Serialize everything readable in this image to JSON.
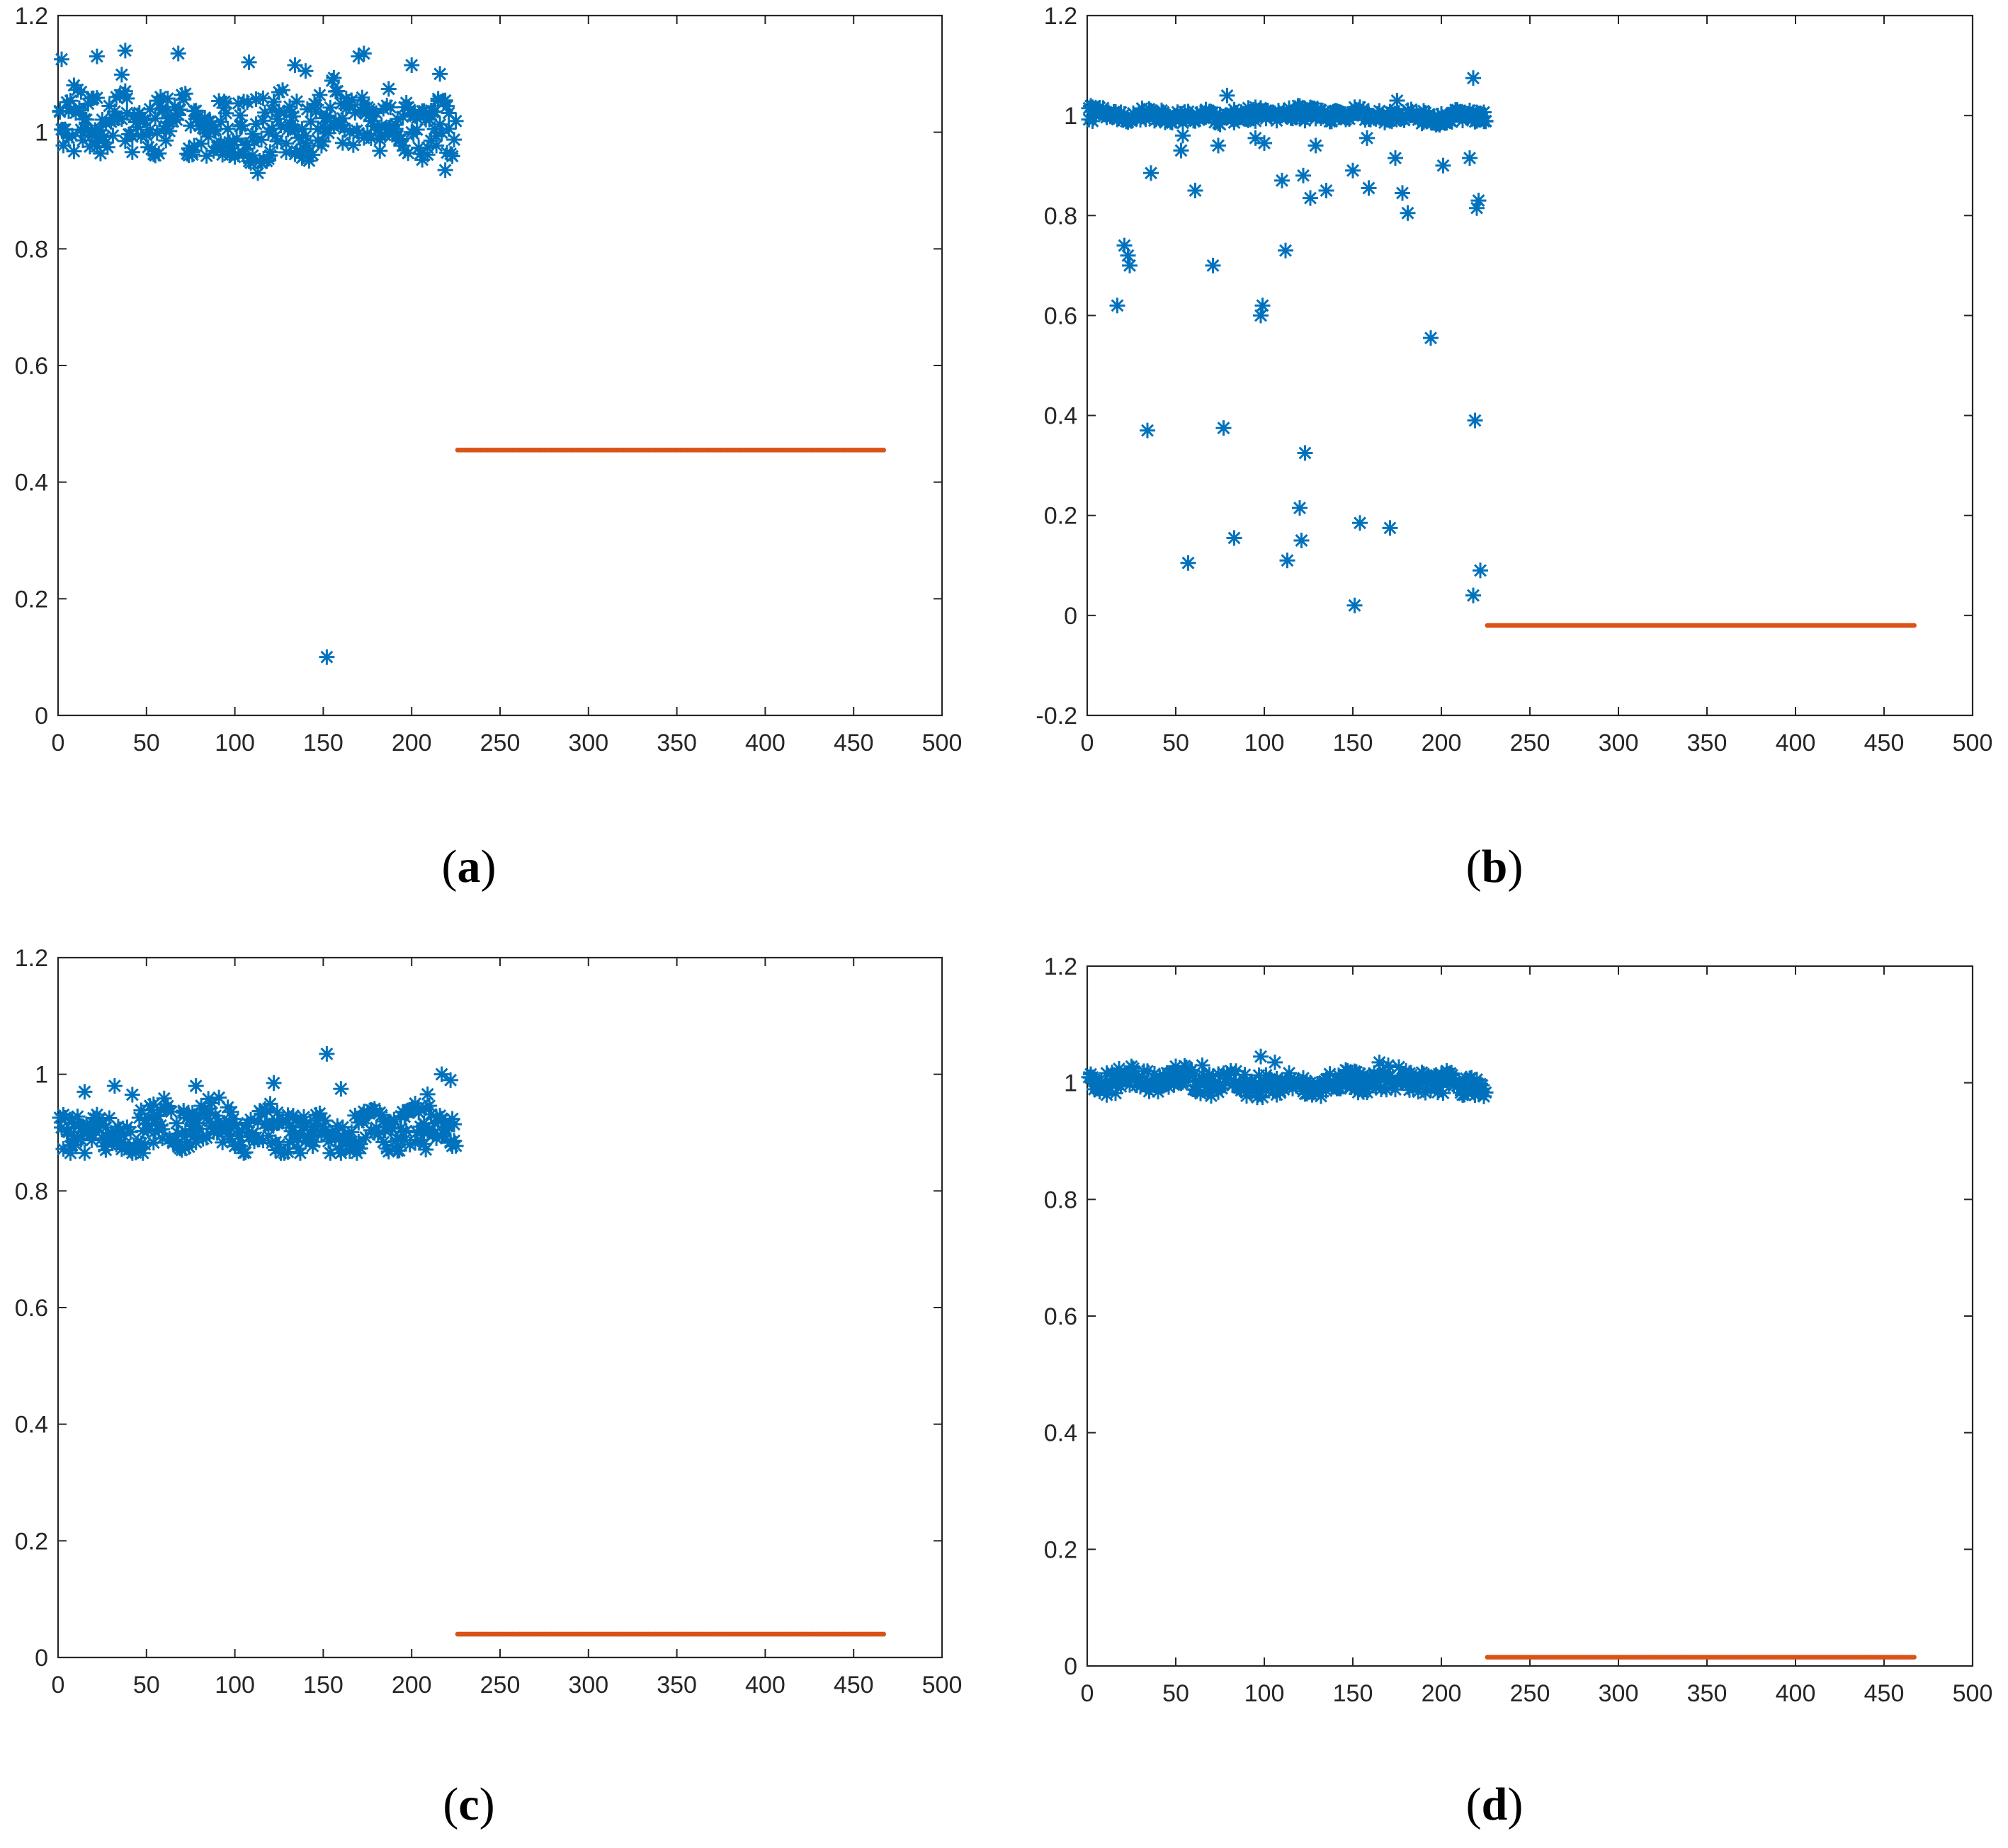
{
  "figure": {
    "panels": [
      {
        "id": "a",
        "caption": {
          "open": "(",
          "letter": "a",
          "close": ")"
        }
      },
      {
        "id": "b",
        "caption": {
          "open": "(",
          "letter": "b",
          "close": ")"
        }
      },
      {
        "id": "c",
        "caption": {
          "open": "(",
          "letter": "c",
          "close": ")"
        }
      },
      {
        "id": "d",
        "caption": {
          "open": "(",
          "letter": "d",
          "close": ")"
        }
      }
    ]
  },
  "chart_data": [
    {
      "panel": "a",
      "type": "scatter",
      "xlim": [
        0,
        500
      ],
      "ylim": [
        0,
        1.2
      ],
      "xticks": [
        "0",
        "50",
        "100",
        "150",
        "200",
        "250",
        "300",
        "350",
        "400",
        "450",
        "500"
      ],
      "yticks": [
        "0",
        "0.2",
        "0.4",
        "0.6",
        "0.8",
        "1",
        "1.2"
      ],
      "colors": {
        "series1": "#0072BD",
        "series2": "#D95319"
      },
      "series": [
        {
          "name": "series1",
          "marker": "asterisk",
          "x_range": [
            1,
            225
          ],
          "pattern": {
            "base": 1.01,
            "spread": 0.05,
            "min": 0.93,
            "max": 1.14
          },
          "notable_points": [
            {
              "x": 2,
              "y": 1.125
            },
            {
              "x": 22,
              "y": 1.13
            },
            {
              "x": 38,
              "y": 1.14
            },
            {
              "x": 68,
              "y": 1.135
            },
            {
              "x": 108,
              "y": 1.12
            },
            {
              "x": 134,
              "y": 1.115
            },
            {
              "x": 140,
              "y": 1.105
            },
            {
              "x": 152,
              "y": 0.1
            },
            {
              "x": 170,
              "y": 1.13
            },
            {
              "x": 173,
              "y": 1.135
            },
            {
              "x": 200,
              "y": 1.115
            },
            {
              "x": 216,
              "y": 1.1
            },
            {
              "x": 219,
              "y": 0.935
            }
          ]
        },
        {
          "name": "series2",
          "marker": "dot",
          "x_range": [
            226,
            467
          ],
          "value": 0.455
        }
      ]
    },
    {
      "panel": "b",
      "type": "scatter",
      "xlim": [
        0,
        500
      ],
      "ylim": [
        -0.2,
        1.2
      ],
      "xticks": [
        "0",
        "50",
        "100",
        "150",
        "200",
        "250",
        "300",
        "350",
        "400",
        "450",
        "500"
      ],
      "yticks": [
        "-0.2",
        "0",
        "0.2",
        "0.4",
        "0.6",
        "0.8",
        "1",
        "1.2"
      ],
      "colors": {
        "series1": "#0072BD",
        "series2": "#D95319"
      },
      "series": [
        {
          "name": "series1",
          "marker": "asterisk",
          "x_range": [
            1,
            225
          ],
          "pattern": {
            "base": 1.0,
            "spread": 0.012,
            "min": 0.97,
            "max": 1.03
          },
          "notable_points": [
            {
              "x": 17,
              "y": 0.62
            },
            {
              "x": 21,
              "y": 0.74
            },
            {
              "x": 23,
              "y": 0.72
            },
            {
              "x": 24,
              "y": 0.7
            },
            {
              "x": 34,
              "y": 0.37
            },
            {
              "x": 36,
              "y": 0.885
            },
            {
              "x": 53,
              "y": 0.93
            },
            {
              "x": 54,
              "y": 0.96
            },
            {
              "x": 57,
              "y": 0.105
            },
            {
              "x": 61,
              "y": 0.85
            },
            {
              "x": 71,
              "y": 0.7
            },
            {
              "x": 74,
              "y": 0.94
            },
            {
              "x": 77,
              "y": 0.375
            },
            {
              "x": 79,
              "y": 1.04
            },
            {
              "x": 83,
              "y": 0.155
            },
            {
              "x": 95,
              "y": 0.955
            },
            {
              "x": 98,
              "y": 0.6
            },
            {
              "x": 99,
              "y": 0.62
            },
            {
              "x": 100,
              "y": 0.945
            },
            {
              "x": 110,
              "y": 0.87
            },
            {
              "x": 112,
              "y": 0.73
            },
            {
              "x": 113,
              "y": 0.11
            },
            {
              "x": 120,
              "y": 0.215
            },
            {
              "x": 121,
              "y": 0.15
            },
            {
              "x": 122,
              "y": 0.88
            },
            {
              "x": 123,
              "y": 0.325
            },
            {
              "x": 126,
              "y": 0.835
            },
            {
              "x": 129,
              "y": 0.94
            },
            {
              "x": 135,
              "y": 0.85
            },
            {
              "x": 150,
              "y": 0.89
            },
            {
              "x": 151,
              "y": 0.02
            },
            {
              "x": 154,
              "y": 0.185
            },
            {
              "x": 158,
              "y": 0.955
            },
            {
              "x": 159,
              "y": 0.855
            },
            {
              "x": 171,
              "y": 0.175
            },
            {
              "x": 174,
              "y": 0.915
            },
            {
              "x": 175,
              "y": 1.03
            },
            {
              "x": 178,
              "y": 0.845
            },
            {
              "x": 181,
              "y": 0.805
            },
            {
              "x": 194,
              "y": 0.555
            },
            {
              "x": 201,
              "y": 0.9
            },
            {
              "x": 216,
              "y": 0.915
            },
            {
              "x": 218,
              "y": 0.04
            },
            {
              "x": 219,
              "y": 0.39
            },
            {
              "x": 220,
              "y": 0.815
            },
            {
              "x": 221,
              "y": 0.83
            },
            {
              "x": 222,
              "y": 0.09
            },
            {
              "x": 218,
              "y": 1.075
            }
          ]
        },
        {
          "name": "series2",
          "marker": "dot",
          "x_range": [
            226,
            467
          ],
          "value": -0.02
        }
      ]
    },
    {
      "panel": "c",
      "type": "scatter",
      "xlim": [
        0,
        500
      ],
      "ylim": [
        0,
        1.2
      ],
      "xticks": [
        "0",
        "50",
        "100",
        "150",
        "200",
        "250",
        "300",
        "350",
        "400",
        "450",
        "500"
      ],
      "yticks": [
        "0",
        "0.2",
        "0.4",
        "0.6",
        "0.8",
        "1",
        "1.2"
      ],
      "colors": {
        "series1": "#0072BD",
        "series2": "#D95319"
      },
      "series": [
        {
          "name": "series1",
          "marker": "asterisk",
          "x_range": [
            1,
            225
          ],
          "pattern": {
            "base": 0.905,
            "spread": 0.035,
            "min": 0.865,
            "max": 0.98
          },
          "notable_points": [
            {
              "x": 15,
              "y": 0.97
            },
            {
              "x": 32,
              "y": 0.98
            },
            {
              "x": 42,
              "y": 0.965
            },
            {
              "x": 78,
              "y": 0.98
            },
            {
              "x": 122,
              "y": 0.985
            },
            {
              "x": 152,
              "y": 1.035
            },
            {
              "x": 160,
              "y": 0.975
            },
            {
              "x": 217,
              "y": 1.0
            },
            {
              "x": 222,
              "y": 0.99
            }
          ]
        },
        {
          "name": "series2",
          "marker": "dot",
          "x_range": [
            226,
            467
          ],
          "value": 0.04
        }
      ]
    },
    {
      "panel": "d",
      "type": "scatter",
      "xlim": [
        0,
        500
      ],
      "ylim": [
        0,
        1.2
      ],
      "xticks": [
        "0",
        "50",
        "100",
        "150",
        "200",
        "250",
        "300",
        "350",
        "400",
        "450",
        "500"
      ],
      "yticks": [
        "0",
        "0.2",
        "0.4",
        "0.6",
        "0.8",
        "1",
        "1.2"
      ],
      "colors": {
        "series1": "#0072BD",
        "series2": "#D95319"
      },
      "series": [
        {
          "name": "series1",
          "marker": "asterisk",
          "x_range": [
            1,
            225
          ],
          "pattern": {
            "base": 1.0,
            "spread": 0.018,
            "min": 0.975,
            "max": 1.03
          },
          "notable_points": [
            {
              "x": 65,
              "y": 1.03
            },
            {
              "x": 98,
              "y": 1.045
            },
            {
              "x": 106,
              "y": 1.035
            },
            {
              "x": 165,
              "y": 1.035
            },
            {
              "x": 170,
              "y": 1.03
            }
          ]
        },
        {
          "name": "series2",
          "marker": "dot",
          "x_range": [
            226,
            467
          ],
          "value": 0.015
        }
      ]
    }
  ]
}
